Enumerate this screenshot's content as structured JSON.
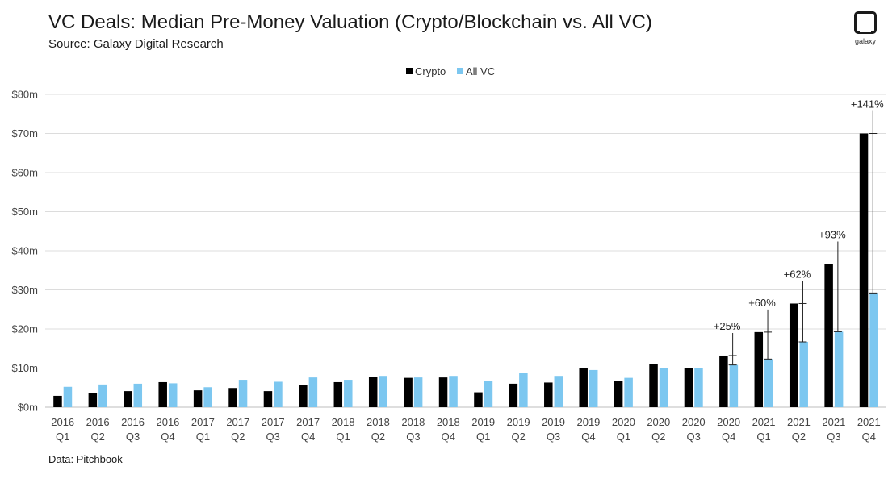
{
  "header": {
    "title": "VC Deals: Median Pre-Money Valuation (Crypto/Blockchain vs. All VC)",
    "subtitle": "Source: Galaxy Digital Research"
  },
  "footer": {
    "note": "Data: Pitchbook"
  },
  "logo": {
    "text": "galaxy"
  },
  "colors": {
    "crypto": "#000000",
    "allvc": "#7cc7f0",
    "grid": "#dcdcdc",
    "annotation": "#222222"
  },
  "chart_data": {
    "type": "bar",
    "title": "VC Deals: Median Pre-Money Valuation (Crypto/Blockchain vs. All VC)",
    "xlabel": "",
    "ylabel": "",
    "ylim": [
      0,
      80
    ],
    "yticks": [
      0,
      10,
      20,
      30,
      40,
      50,
      60,
      70,
      80
    ],
    "ytick_labels": [
      "$0m",
      "$10m",
      "$20m",
      "$30m",
      "$40m",
      "$50m",
      "$60m",
      "$70m",
      "$80m"
    ],
    "grid": true,
    "legend_position": "top-center",
    "categories": [
      [
        "2016",
        "Q1"
      ],
      [
        "2016",
        "Q2"
      ],
      [
        "2016",
        "Q3"
      ],
      [
        "2016",
        "Q4"
      ],
      [
        "2017",
        "Q1"
      ],
      [
        "2017",
        "Q2"
      ],
      [
        "2017",
        "Q3"
      ],
      [
        "2017",
        "Q4"
      ],
      [
        "2018",
        "Q1"
      ],
      [
        "2018",
        "Q2"
      ],
      [
        "2018",
        "Q3"
      ],
      [
        "2018",
        "Q4"
      ],
      [
        "2019",
        "Q1"
      ],
      [
        "2019",
        "Q2"
      ],
      [
        "2019",
        "Q3"
      ],
      [
        "2019",
        "Q4"
      ],
      [
        "2020",
        "Q1"
      ],
      [
        "2020",
        "Q2"
      ],
      [
        "2020",
        "Q3"
      ],
      [
        "2020",
        "Q4"
      ],
      [
        "2021",
        "Q1"
      ],
      [
        "2021",
        "Q2"
      ],
      [
        "2021",
        "Q3"
      ],
      [
        "2021",
        "Q4"
      ]
    ],
    "series": [
      {
        "name": "Crypto",
        "values": [
          2.9,
          3.6,
          4.1,
          6.4,
          4.3,
          4.9,
          4.1,
          5.6,
          6.4,
          7.7,
          7.5,
          7.6,
          3.8,
          6.0,
          6.3,
          9.9,
          6.6,
          11.1,
          9.9,
          13.2,
          19.2,
          26.5,
          36.6,
          70.0
        ]
      },
      {
        "name": "All VC",
        "values": [
          5.2,
          5.8,
          6.0,
          6.1,
          5.1,
          7.0,
          6.5,
          7.6,
          7.0,
          8.0,
          7.6,
          8.0,
          6.8,
          8.7,
          8.0,
          9.5,
          7.5,
          10.0,
          10.0,
          10.8,
          12.3,
          16.7,
          19.3,
          29.2
        ]
      }
    ],
    "annotations": [
      {
        "category_index": 19,
        "label": "+25%"
      },
      {
        "category_index": 20,
        "label": "+60%"
      },
      {
        "category_index": 21,
        "label": "+62%"
      },
      {
        "category_index": 22,
        "label": "+93%"
      },
      {
        "category_index": 23,
        "label": "+141%"
      }
    ]
  }
}
